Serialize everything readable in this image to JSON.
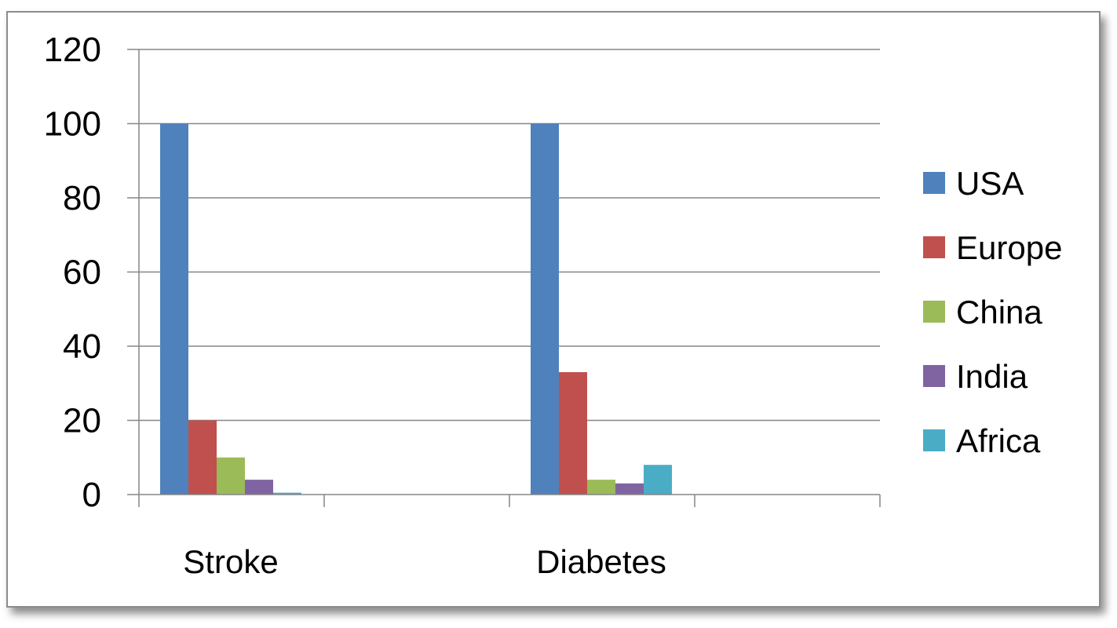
{
  "chart_data": {
    "type": "bar",
    "categories": [
      "Stroke",
      "Diabetes"
    ],
    "series": [
      {
        "name": "USA",
        "color": "#4f81bd",
        "values": [
          100,
          100
        ]
      },
      {
        "name": "Europe",
        "color": "#c0504d",
        "values": [
          20,
          33
        ]
      },
      {
        "name": "China",
        "color": "#9bbb59",
        "values": [
          10,
          4
        ]
      },
      {
        "name": "India",
        "color": "#8064a2",
        "values": [
          4,
          3
        ]
      },
      {
        "name": "Africa",
        "color": "#4bacc6",
        "values": [
          0.5,
          8
        ]
      }
    ],
    "title": "",
    "xlabel": "",
    "ylabel": "",
    "ylim": [
      0,
      120
    ],
    "yticks": [
      0,
      20,
      40,
      60,
      80,
      100,
      120
    ],
    "grid": true,
    "legend_position": "right"
  }
}
